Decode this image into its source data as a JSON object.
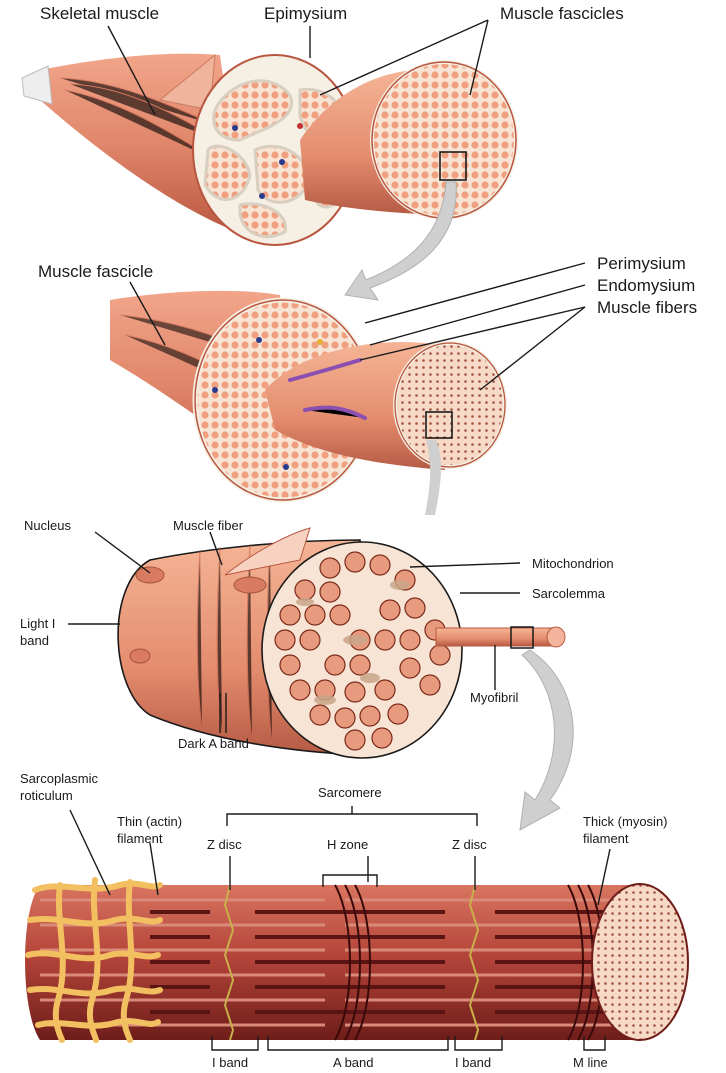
{
  "labels": {
    "skeletal_muscle": "Skeletal muscle",
    "epimysium": "Epimysium",
    "muscle_fascicles": "Muscle fascicles",
    "muscle_fascicle": "Muscle fascicle",
    "perimysium": "Perimysium",
    "endomysium": "Endomysium",
    "muscle_fibers": "Muscle fibers",
    "nucleus": "Nucleus",
    "muscle_fiber": "Muscle fiber",
    "mitochondrion": "Mitochondrion",
    "sarcolemma": "Sarcolemma",
    "light_i_band_1": "Light I",
    "light_i_band_2": "band",
    "myofibril": "Myofibril",
    "dark_a_band": "Dark A band",
    "sarcoplasmic_1": "Sarcoplasmic",
    "sarcoplasmic_2": "roticulum",
    "sarcomere": "Sarcomere",
    "thin_filament_1": "Thin (actin)",
    "thin_filament_2": "filament",
    "z_disc_left": "Z disc",
    "h_zone": "H zone",
    "z_disc_right": "Z disc",
    "thick_filament_1": "Thick (myosin)",
    "thick_filament_2": "filament",
    "i_band_left": "I band",
    "a_band": "A band",
    "i_band_right": "I band",
    "m_line": "M line"
  },
  "colors": {
    "muscle": "#e0866a",
    "muscle_dark": "#b8563f",
    "fascicle_fill": "#f0a07e",
    "sheath": "#f5efe4",
    "myofibril": "#e89a7e",
    "reticulum": "#f2c060",
    "arrow": "#cfcfcf",
    "myosin": "#7a1f1f",
    "actin": "#c9655a"
  }
}
